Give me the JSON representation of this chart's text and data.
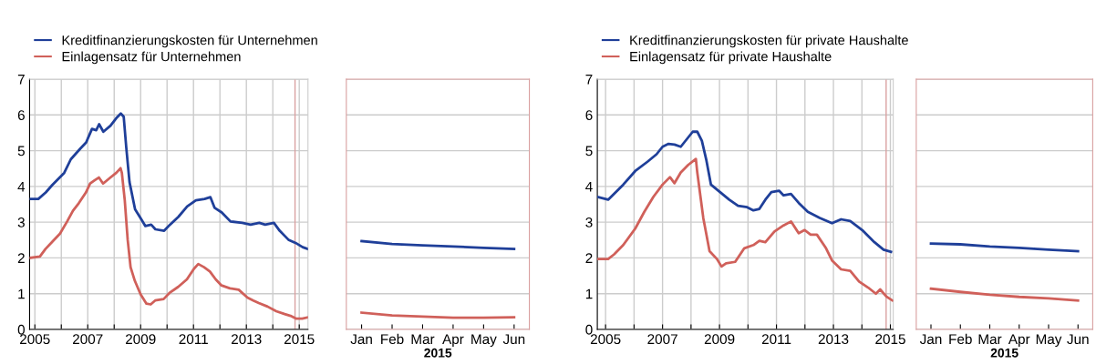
{
  "chart_data": [
    {
      "type": "line",
      "xlim": [
        2004.8,
        2015.33
      ],
      "xticks": [
        2005,
        {
          "value": 2006,
          "label": null
        },
        2007,
        {
          "value": 2008,
          "label": null
        },
        2009,
        {
          "value": 2010,
          "label": null
        },
        2011,
        {
          "value": 2012,
          "label": null
        },
        2013,
        {
          "value": 2014,
          "label": null
        },
        2015
      ],
      "ylim": [
        0,
        7
      ],
      "yticks": [
        0,
        1,
        2,
        3,
        4,
        5,
        6,
        7
      ],
      "grid": true,
      "legend": "top left",
      "ref_lines": [
        {
          "axis": "x",
          "value": 2014.84,
          "color": "#d9a0a0"
        }
      ],
      "series": [
        {
          "name": "Kreditfinanzierungskosten für Unternehmen",
          "color": "#1f3f99",
          "x": [
            2004.8,
            2005.13,
            2005.41,
            2005.66,
            2006.11,
            2006.36,
            2006.72,
            2006.94,
            2007.16,
            2007.32,
            2007.43,
            2007.59,
            2007.86,
            2008.08,
            2008.25,
            2008.36,
            2008.46,
            2008.58,
            2008.79,
            2009.01,
            2009.18,
            2009.4,
            2009.56,
            2009.89,
            2010.11,
            2010.43,
            2010.76,
            2011.09,
            2011.42,
            2011.64,
            2011.8,
            2012.07,
            2012.4,
            2012.84,
            2013.16,
            2013.49,
            2013.71,
            2014.04,
            2014.26,
            2014.59,
            2014.86,
            2015.13,
            2015.33
          ],
          "values": [
            3.65,
            3.65,
            3.83,
            4.04,
            4.38,
            4.76,
            5.06,
            5.23,
            5.61,
            5.57,
            5.74,
            5.53,
            5.7,
            5.91,
            6.04,
            5.95,
            5.06,
            4.12,
            3.36,
            3.1,
            2.89,
            2.93,
            2.8,
            2.76,
            2.93,
            3.15,
            3.44,
            3.61,
            3.65,
            3.7,
            3.4,
            3.27,
            3.02,
            2.98,
            2.93,
            2.98,
            2.93,
            2.98,
            2.76,
            2.51,
            2.42,
            2.3,
            2.25
          ]
        },
        {
          "name": "Einlagensatz für Unternehmen",
          "color": "#d0605a",
          "x": [
            2004.8,
            2005.19,
            2005.4,
            2005.68,
            2005.95,
            2006.22,
            2006.44,
            2006.66,
            2006.93,
            2007.09,
            2007.26,
            2007.42,
            2007.58,
            2007.86,
            2008.08,
            2008.24,
            2008.29,
            2008.4,
            2008.51,
            2008.62,
            2008.78,
            2009.0,
            2009.22,
            2009.38,
            2009.55,
            2009.87,
            2010.09,
            2010.42,
            2010.75,
            2011.02,
            2011.18,
            2011.4,
            2011.62,
            2011.84,
            2012.06,
            2012.38,
            2012.71,
            2013.04,
            2013.26,
            2013.47,
            2013.8,
            2014.13,
            2014.45,
            2014.67,
            2014.89,
            2015.11,
            2015.33
          ],
          "values": [
            2.0,
            2.04,
            2.25,
            2.47,
            2.68,
            3.02,
            3.32,
            3.53,
            3.83,
            4.08,
            4.17,
            4.25,
            4.08,
            4.25,
            4.38,
            4.51,
            4.38,
            3.61,
            2.51,
            1.74,
            1.36,
            0.98,
            0.72,
            0.7,
            0.81,
            0.85,
            1.02,
            1.19,
            1.4,
            1.7,
            1.83,
            1.74,
            1.62,
            1.4,
            1.23,
            1.15,
            1.11,
            0.89,
            0.81,
            0.74,
            0.64,
            0.51,
            0.43,
            0.38,
            0.3,
            0.3,
            0.34
          ]
        }
      ]
    },
    {
      "type": "line",
      "categories": [
        "Jan",
        "Feb",
        "Mar",
        "Apr",
        "May",
        "Jun"
      ],
      "xlabel": "2015",
      "ylim": [
        0,
        7
      ],
      "yticks": [
        0,
        1,
        2,
        3,
        4,
        5,
        6,
        7
      ],
      "grid": "y",
      "tick_labels": "x",
      "series": [
        {
          "color": "#1f3f99",
          "values": [
            2.47,
            2.39,
            2.35,
            2.32,
            2.28,
            2.25
          ]
        },
        {
          "color": "#d0605a",
          "values": [
            0.47,
            0.39,
            0.36,
            0.33,
            0.33,
            0.34
          ]
        }
      ]
    },
    {
      "type": "line",
      "xlim": [
        2004.71,
        2015.1
      ],
      "xticks": [
        2005,
        {
          "value": 2006,
          "label": null
        },
        2007,
        {
          "value": 2008,
          "label": null
        },
        2009,
        {
          "value": 2010,
          "label": null
        },
        2011,
        {
          "value": 2012,
          "label": null
        },
        2013,
        {
          "value": 2014,
          "label": null
        },
        2015
      ],
      "ylim": [
        0,
        7
      ],
      "yticks": [
        0,
        1,
        2,
        3,
        4,
        5,
        6,
        7
      ],
      "grid": true,
      "legend": "top left",
      "ref_lines": [
        {
          "axis": "x",
          "value": 2014.85,
          "color": "#d9a0a0"
        }
      ],
      "series": [
        {
          "name": "Kreditfinanzierungskosten für private Haushalte",
          "color": "#1f3f99",
          "x": [
            2004.71,
            2005.09,
            2005.62,
            2006.04,
            2006.47,
            2006.79,
            2007.0,
            2007.21,
            2007.42,
            2007.64,
            2007.85,
            2008.06,
            2008.22,
            2008.38,
            2008.54,
            2008.7,
            2009.02,
            2009.34,
            2009.65,
            2009.97,
            2010.19,
            2010.4,
            2010.61,
            2010.82,
            2011.09,
            2011.25,
            2011.51,
            2011.78,
            2012.1,
            2012.52,
            2012.95,
            2013.27,
            2013.59,
            2014.01,
            2014.44,
            2014.76,
            2015.02
          ],
          "values": [
            3.71,
            3.63,
            4.05,
            4.43,
            4.69,
            4.9,
            5.11,
            5.19,
            5.17,
            5.11,
            5.32,
            5.53,
            5.53,
            5.28,
            4.73,
            4.05,
            3.84,
            3.63,
            3.46,
            3.42,
            3.33,
            3.37,
            3.63,
            3.84,
            3.88,
            3.75,
            3.79,
            3.54,
            3.29,
            3.12,
            2.97,
            3.08,
            3.03,
            2.78,
            2.44,
            2.23,
            2.17
          ]
        },
        {
          "name": "Einlagensatz für private Haushalte",
          "color": "#d0605a",
          "x": [
            2004.71,
            2005.09,
            2005.3,
            2005.62,
            2006.04,
            2006.36,
            2006.68,
            2007.0,
            2007.26,
            2007.42,
            2007.64,
            2007.9,
            2008.17,
            2008.22,
            2008.43,
            2008.65,
            2008.91,
            2009.07,
            2009.23,
            2009.55,
            2009.87,
            2010.19,
            2010.4,
            2010.61,
            2010.93,
            2011.25,
            2011.51,
            2011.78,
            2011.99,
            2012.2,
            2012.42,
            2012.74,
            2012.95,
            2013.27,
            2013.59,
            2013.9,
            2014.22,
            2014.49,
            2014.64,
            2014.86,
            2015.07
          ],
          "values": [
            1.97,
            1.97,
            2.1,
            2.36,
            2.82,
            3.29,
            3.71,
            4.05,
            4.26,
            4.09,
            4.39,
            4.6,
            4.77,
            4.39,
            3.12,
            2.19,
            1.97,
            1.76,
            1.85,
            1.89,
            2.27,
            2.36,
            2.48,
            2.44,
            2.74,
            2.91,
            3.02,
            2.69,
            2.78,
            2.65,
            2.65,
            2.27,
            1.93,
            1.68,
            1.64,
            1.34,
            1.17,
            1.0,
            1.12,
            0.92,
            0.81
          ]
        }
      ]
    },
    {
      "type": "line",
      "categories": [
        "Jan",
        "Feb",
        "Mar",
        "Apr",
        "May",
        "Jun"
      ],
      "xlabel": "2015",
      "ylim": [
        0,
        7
      ],
      "yticks": [
        0,
        1,
        2,
        3,
        4,
        5,
        6,
        7
      ],
      "grid": "y",
      "tick_labels": "x",
      "series": [
        {
          "color": "#1f3f99",
          "values": [
            2.4,
            2.38,
            2.32,
            2.28,
            2.23,
            2.19
          ]
        },
        {
          "color": "#d0605a",
          "values": [
            1.14,
            1.05,
            0.97,
            0.91,
            0.87,
            0.81
          ]
        }
      ]
    }
  ]
}
